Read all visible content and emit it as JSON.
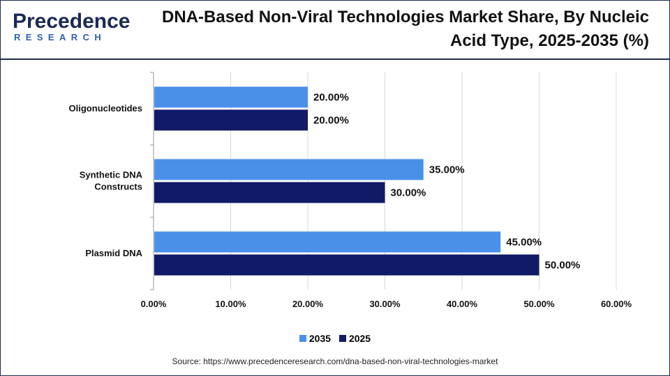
{
  "brand": {
    "word": "Precedence",
    "sub": "RESEARCH"
  },
  "title": "DNA-Based Non-Viral Technologies Market Share, By Nucleic Acid Type, 2025-2035 (%)",
  "source": "Source: https://www.precedenceresearch.com/dna-based-non-viral-technologies-market",
  "colors": {
    "s2035": "#4a90e8",
    "s2025": "#111a66",
    "grid": "#d8d8d8",
    "axis": "#999999",
    "border": "#1f2b4d"
  },
  "chart_data": {
    "type": "bar",
    "orientation": "horizontal",
    "categories": [
      "Oligonucleotides",
      "Synthetic DNA Constructs",
      "Plasmid DNA"
    ],
    "category_lines": [
      [
        "Oligonucleotides"
      ],
      [
        "Synthetic DNA",
        "Constructs"
      ],
      [
        "Plasmid DNA"
      ]
    ],
    "series": [
      {
        "name": "2035",
        "values": [
          20.0,
          35.0,
          45.0
        ],
        "labels": [
          "20.00%",
          "35.00%",
          "45.00%"
        ],
        "color": "#4a90e8"
      },
      {
        "name": "2025",
        "values": [
          20.0,
          30.0,
          50.0
        ],
        "labels": [
          "20.00%",
          "30.00%",
          "50.00%"
        ],
        "color": "#111a66"
      }
    ],
    "xlim": [
      0,
      60
    ],
    "xticks": [
      "0.00%",
      "10.00%",
      "20.00%",
      "30.00%",
      "40.00%",
      "50.00%",
      "60.00%"
    ],
    "grid": true,
    "legend_position": "bottom"
  }
}
